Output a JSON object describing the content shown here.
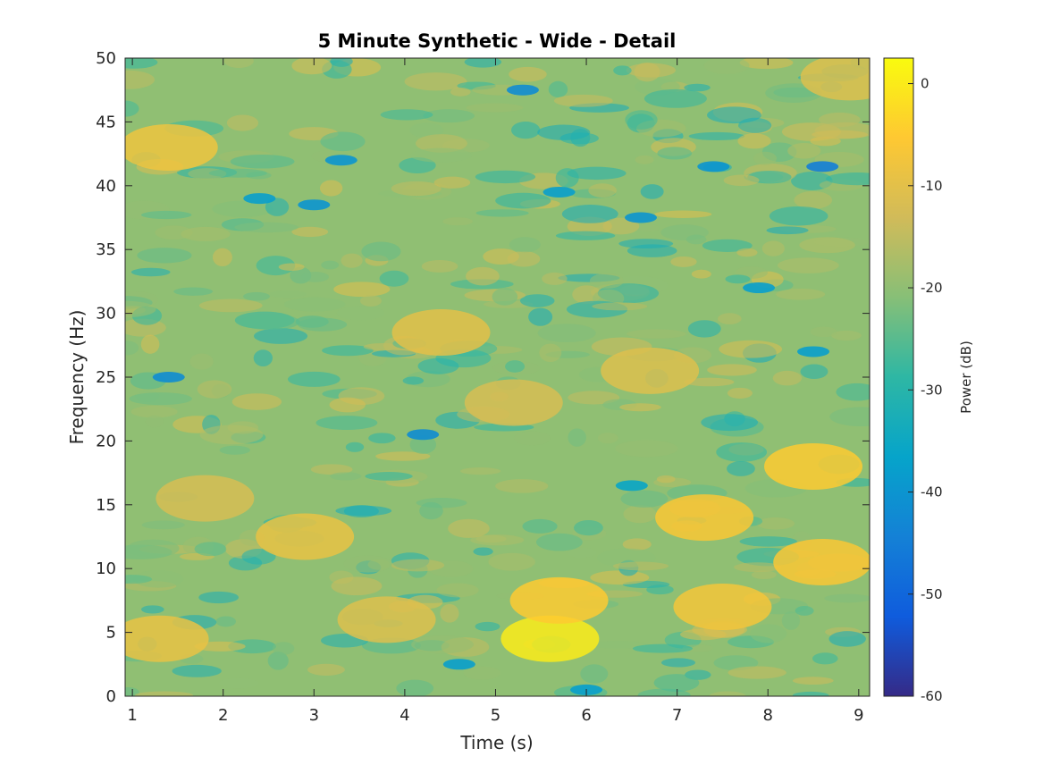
{
  "chart_data": {
    "type": "heatmap",
    "title": "5 Minute Synthetic - Wide - Detail",
    "xlabel": "Time (s)",
    "ylabel": "Frequency (Hz)",
    "xlim": [
      0.92,
      9.12
    ],
    "ylim": [
      0,
      50
    ],
    "xticks": [
      1,
      2,
      3,
      4,
      5,
      6,
      7,
      8,
      9
    ],
    "yticks": [
      0,
      5,
      10,
      15,
      20,
      25,
      30,
      35,
      40,
      45,
      50
    ],
    "colorbar": {
      "label": "Power (dB)",
      "clim": [
        -60,
        2.5
      ],
      "ticks": [
        0,
        -10,
        -20,
        -30,
        -40,
        -50,
        -60
      ],
      "colormap": "parula"
    },
    "grid": false,
    "background_level_db": -20,
    "hotspots": [
      {
        "t": 5.6,
        "f": 4.5,
        "db": 0
      },
      {
        "t": 5.7,
        "f": 7.5,
        "db": -5
      },
      {
        "t": 8.5,
        "f": 18,
        "db": -5
      },
      {
        "t": 8.6,
        "f": 10.5,
        "db": -6
      },
      {
        "t": 7.3,
        "f": 14,
        "db": -6
      },
      {
        "t": 7.5,
        "f": 7,
        "db": -7
      },
      {
        "t": 1.4,
        "f": 43,
        "db": -8
      },
      {
        "t": 1.3,
        "f": 4.5,
        "db": -9
      },
      {
        "t": 2.9,
        "f": 12.5,
        "db": -9
      },
      {
        "t": 4.4,
        "f": 28.5,
        "db": -10
      },
      {
        "t": 6.7,
        "f": 25.5,
        "db": -11
      },
      {
        "t": 8.9,
        "f": 48.5,
        "db": -11
      },
      {
        "t": 5.2,
        "f": 23,
        "db": -12
      },
      {
        "t": 1.8,
        "f": 15.5,
        "db": -12
      },
      {
        "t": 3.8,
        "f": 6,
        "db": -11
      }
    ],
    "coldspots": [
      {
        "t": 8.6,
        "f": 41.5,
        "db": -45
      },
      {
        "t": 1.4,
        "f": 25,
        "db": -42
      },
      {
        "t": 3.3,
        "f": 42,
        "db": -40
      },
      {
        "t": 6.6,
        "f": 37.5,
        "db": -40
      },
      {
        "t": 4.2,
        "f": 20.5,
        "db": -42
      },
      {
        "t": 5.3,
        "f": 47.5,
        "db": -42
      },
      {
        "t": 7.4,
        "f": 41.5,
        "db": -40
      },
      {
        "t": 3.0,
        "f": 38.5,
        "db": -40
      },
      {
        "t": 8.5,
        "f": 27,
        "db": -38
      },
      {
        "t": 2.4,
        "f": 39,
        "db": -38
      },
      {
        "t": 5.7,
        "f": 39.5,
        "db": -38
      },
      {
        "t": 6.0,
        "f": 0.5,
        "db": -38
      },
      {
        "t": 4.6,
        "f": 2.5,
        "db": -38
      },
      {
        "t": 7.9,
        "f": 32,
        "db": -38
      },
      {
        "t": 6.5,
        "f": 16.5,
        "db": -36
      }
    ]
  }
}
